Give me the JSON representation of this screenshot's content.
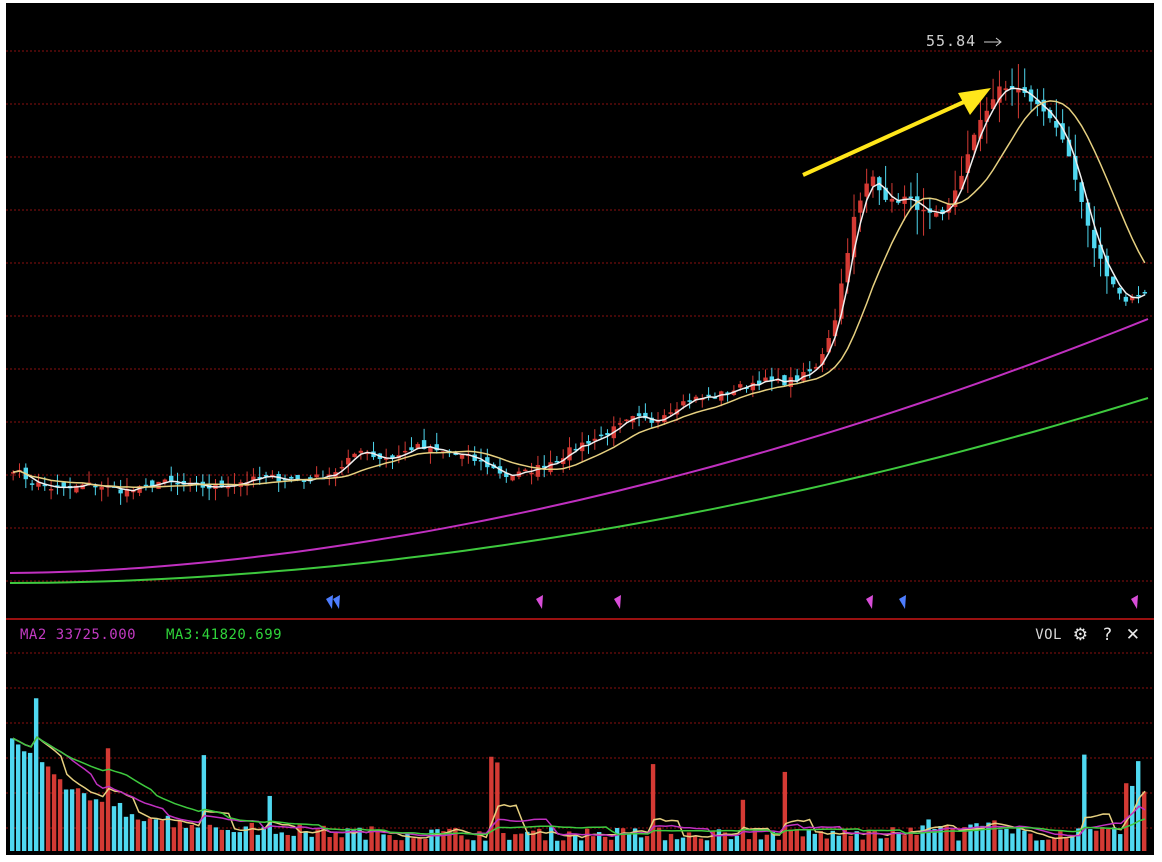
{
  "peak_label": "55.84",
  "volume_panel": {
    "title": "VOL",
    "ma2": "MA2 33725.000",
    "ma3": "MA3:41820.699",
    "controls": [
      "settings-icon",
      "help-icon",
      "close-icon"
    ]
  },
  "colors": {
    "background": "#000000",
    "up_candle": "#d43a34",
    "down_candle": "#4fd8f0",
    "ma_short": "#f0f0f0",
    "ma_mid": "#e6d080",
    "ma_long": "#c030c0",
    "ma_longest": "#3ec93e",
    "grid": "#8a1010",
    "arrow": "#ffe61a"
  },
  "chart_data": [
    {
      "type": "candlestick",
      "title": "",
      "series": [
        {
          "values": [
            27.8,
            26.9,
            26.5,
            26.4,
            26.7,
            26.6,
            26.3,
            26.4,
            26.9,
            26.7,
            26.6,
            26.5,
            26.8,
            27.0,
            27.2,
            27.1,
            27.0,
            27.3,
            27.8,
            29.2,
            28.5,
            28.6,
            29.3,
            29.0,
            28.8,
            28.5,
            28.0,
            27.3,
            27.5,
            28.0,
            28.6,
            29.4,
            29.9,
            30.5,
            31.2,
            31.0,
            31.8,
            32.5,
            32.6,
            32.9,
            33.4,
            33.8,
            33.6,
            33.9,
            34.6,
            37.8,
            44.5,
            47.8,
            45.8,
            46.2,
            45.0,
            44.8,
            47.9,
            51.5,
            53.5,
            53.6,
            52.5,
            51.5,
            48.2,
            43.5,
            40.8,
            38.9,
            39.9
          ]
        }
      ],
      "annotations": [
        {
          "text": "55.84"
        }
      ]
    },
    {
      "type": "bar",
      "title": "VOL",
      "series": [
        {
          "name": "MA2",
          "values": [
            33725.0
          ]
        },
        {
          "name": "MA3",
          "values": [
            41820.699
          ]
        }
      ]
    }
  ]
}
